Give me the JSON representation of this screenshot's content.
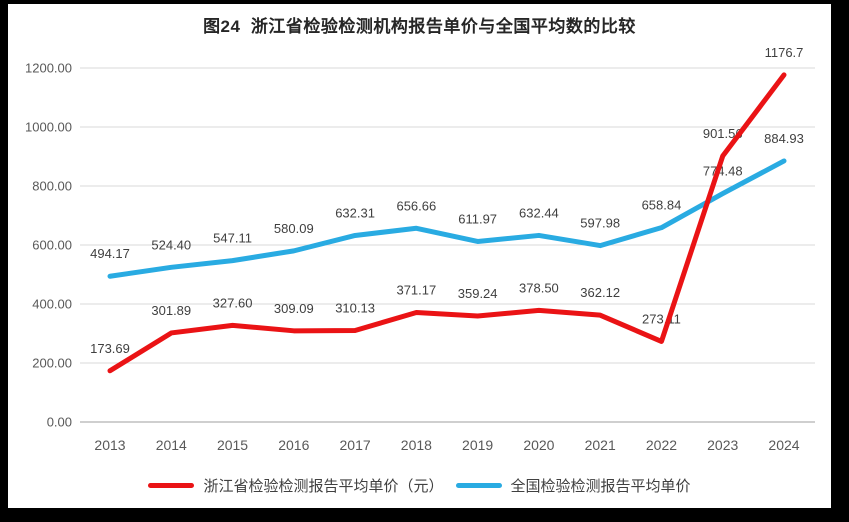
{
  "title": "图24  浙江省检验检测机构报告单价与全国平均数的比较",
  "chart_data": {
    "type": "line",
    "categories": [
      "2013",
      "2014",
      "2015",
      "2016",
      "2017",
      "2018",
      "2019",
      "2020",
      "2021",
      "2022",
      "2023",
      "2024"
    ],
    "series": [
      {
        "key": "zhejiang",
        "name": "浙江省检验检测报告平均单价（元）",
        "color": "#ea1315",
        "values": [
          173.69,
          301.89,
          327.6,
          309.09,
          310.13,
          371.17,
          359.24,
          378.5,
          362.12,
          273.11,
          901.56,
          1176.7
        ],
        "labels": [
          "173.69",
          "301.89",
          "327.60",
          "309.09",
          "310.13",
          "371.17",
          "359.24",
          "378.50",
          "362.12",
          "273.11",
          "901.56",
          "1176.7"
        ]
      },
      {
        "key": "national",
        "name": "全国检验检测报告平均单价",
        "color": "#29abe2",
        "values": [
          494.17,
          524.4,
          547.11,
          580.09,
          632.31,
          656.66,
          611.97,
          632.44,
          597.98,
          658.84,
          774.48,
          884.93
        ],
        "labels": [
          "494.17",
          "524.40",
          "547.11",
          "580.09",
          "632.31",
          "656.66",
          "611.97",
          "632.44",
          "597.98",
          "658.84",
          "774.48",
          "884.93"
        ]
      }
    ],
    "ylim": [
      0,
      1200
    ],
    "ytick_step": 200,
    "ytick_labels": [
      "0.00",
      "200.00",
      "400.00",
      "600.00",
      "800.00",
      "1000.00",
      "1200.00"
    ],
    "grid": true,
    "legend_position": "bottom",
    "grid_color": "#d9d9d9",
    "axis_color": "#bfbfbf"
  }
}
